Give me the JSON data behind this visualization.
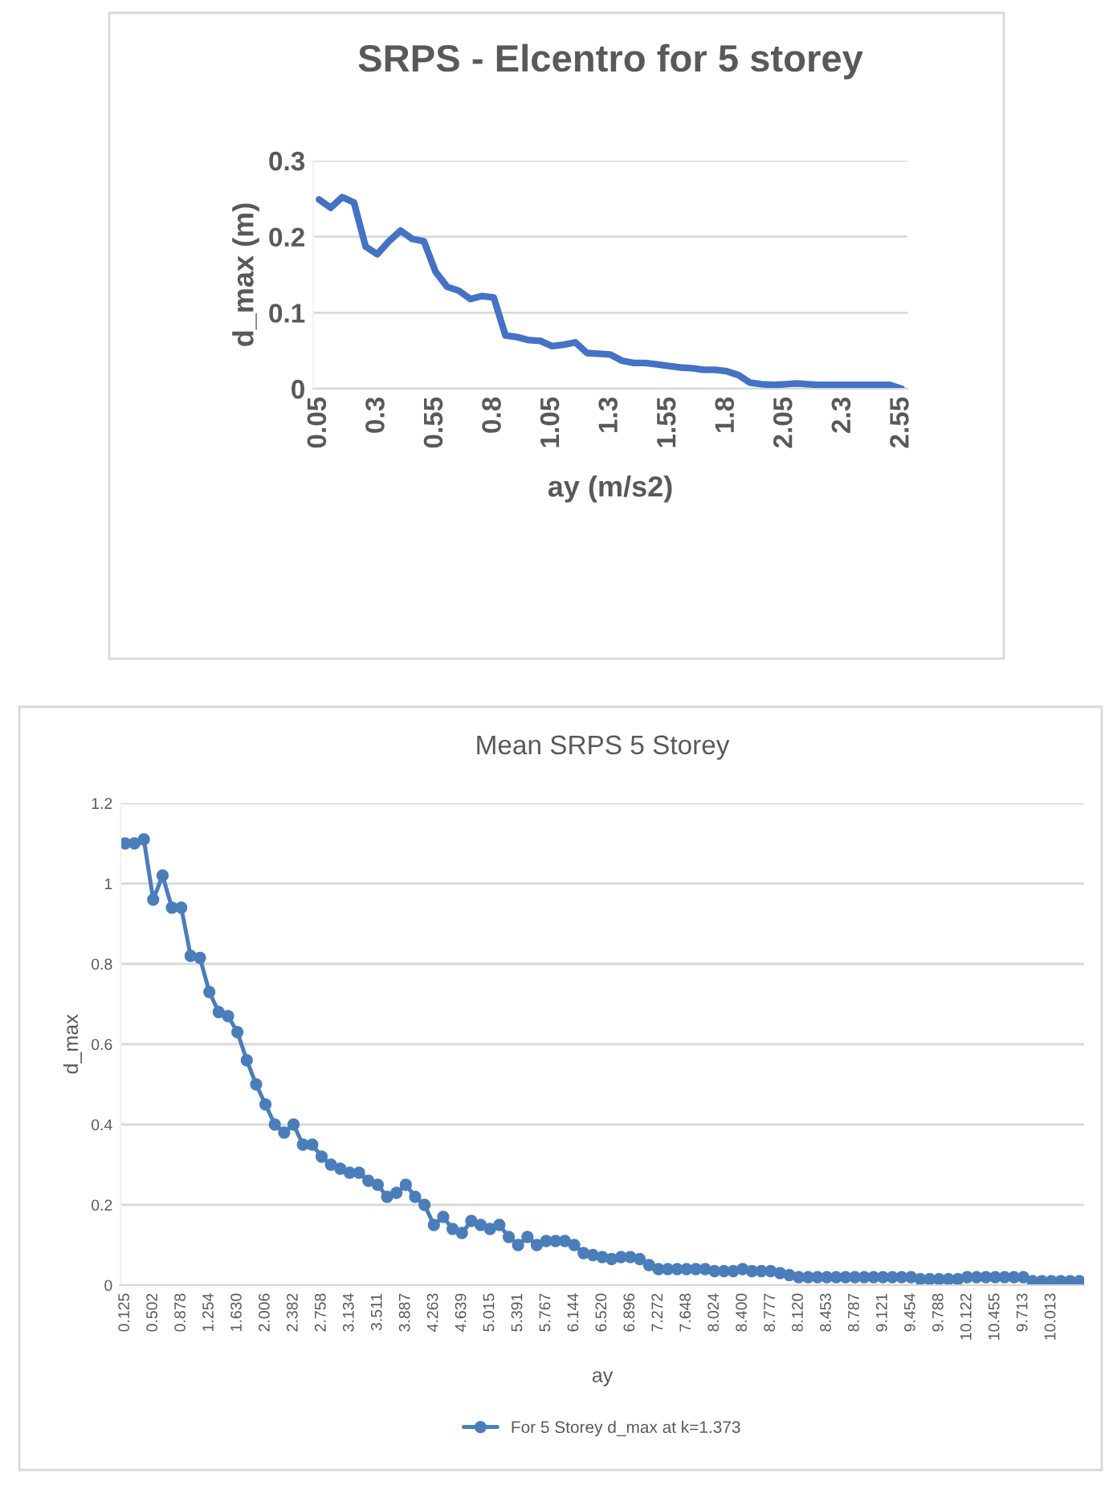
{
  "chart_data": [
    {
      "type": "line",
      "title": "SRPS - Elcentro for 5 storey",
      "xlabel": "ay (m/s2)",
      "ylabel": "d_max (m)",
      "categories": [
        "0.05",
        null,
        null,
        null,
        null,
        "0.3",
        null,
        null,
        null,
        null,
        "0.55",
        null,
        null,
        null,
        null,
        "0.8",
        null,
        null,
        null,
        null,
        "1.05",
        null,
        null,
        null,
        null,
        "1.3",
        null,
        null,
        null,
        null,
        "1.55",
        null,
        null,
        null,
        null,
        "1.8",
        null,
        null,
        null,
        null,
        "2.05",
        null,
        null,
        null,
        null,
        "2.3",
        null,
        null,
        null,
        null,
        "2.55"
      ],
      "series": [
        {
          "color": "#4472c4",
          "values": [
            0.249,
            0.238,
            0.252,
            0.245,
            0.187,
            0.177,
            0.194,
            0.208,
            0.197,
            0.194,
            0.154,
            0.134,
            0.129,
            0.118,
            0.122,
            0.12,
            0.07,
            0.068,
            0.064,
            0.063,
            0.056,
            0.058,
            0.061,
            0.047,
            0.046,
            0.045,
            0.037,
            0.034,
            0.034,
            0.032,
            0.03,
            0.028,
            0.027,
            0.025,
            0.025,
            0.023,
            0.018,
            0.008,
            0.006,
            0.005,
            0.006,
            0.007,
            0.006,
            0.005,
            0.005,
            0.005,
            0.005,
            0.005,
            0.005,
            0.005,
            0.0
          ]
        }
      ],
      "ylim": [
        0,
        0.3
      ],
      "yticks": [
        0,
        0.1,
        0.2,
        0.3
      ],
      "grid": "y"
    },
    {
      "type": "line",
      "title": "Mean SRPS 5 Storey",
      "xlabel": "ay",
      "ylabel": "d_max",
      "categories": [
        "0.125",
        null,
        null,
        "0.502",
        null,
        null,
        "0.878",
        null,
        null,
        "1.254",
        null,
        null,
        "1.630",
        null,
        null,
        "2.006",
        null,
        null,
        "2.382",
        null,
        null,
        "2.758",
        null,
        null,
        "3.134",
        null,
        null,
        "3.511",
        null,
        null,
        "3.887",
        null,
        null,
        "4.263",
        null,
        null,
        "4.639",
        null,
        null,
        "5.015",
        null,
        null,
        "5.391",
        null,
        null,
        "5.767",
        null,
        null,
        "6.144",
        null,
        null,
        "6.520",
        null,
        null,
        "6.896",
        null,
        null,
        "7.272",
        null,
        null,
        "7.648",
        null,
        null,
        "8.024",
        null,
        null,
        "8.400",
        null,
        null,
        "8.777",
        null,
        null,
        "8.120",
        null,
        null,
        "8.453",
        null,
        null,
        "8.787",
        null,
        null,
        "9.121",
        null,
        null,
        "9.454",
        null,
        null,
        "9.788",
        null,
        null,
        "10.122",
        null,
        null,
        "10.455",
        null,
        null,
        "9.713",
        null,
        null,
        "10.013",
        null,
        null,
        null
      ],
      "series": [
        {
          "name": "For 5 Storey d_max at k=1.373",
          "color": "#4a7ebb",
          "values": [
            1.1,
            1.1,
            1.11,
            0.96,
            1.02,
            0.94,
            0.94,
            0.82,
            0.815,
            0.73,
            0.68,
            0.67,
            0.63,
            0.56,
            0.5,
            0.45,
            0.4,
            0.38,
            0.4,
            0.35,
            0.35,
            0.32,
            0.3,
            0.29,
            0.28,
            0.28,
            0.26,
            0.25,
            0.22,
            0.23,
            0.25,
            0.22,
            0.2,
            0.15,
            0.17,
            0.14,
            0.13,
            0.16,
            0.15,
            0.14,
            0.15,
            0.12,
            0.1,
            0.12,
            0.1,
            0.11,
            0.11,
            0.11,
            0.1,
            0.08,
            0.075,
            0.07,
            0.065,
            0.07,
            0.07,
            0.065,
            0.05,
            0.04,
            0.04,
            0.04,
            0.04,
            0.04,
            0.04,
            0.035,
            0.035,
            0.035,
            0.04,
            0.035,
            0.035,
            0.035,
            0.03,
            0.025,
            0.02,
            0.02,
            0.02,
            0.02,
            0.02,
            0.02,
            0.02,
            0.02,
            0.02,
            0.02,
            0.02,
            0.02,
            0.02,
            0.015,
            0.015,
            0.015,
            0.015,
            0.015,
            0.02,
            0.02,
            0.02,
            0.02,
            0.02,
            0.02,
            0.02,
            0.01,
            0.01,
            0.01,
            0.01,
            0.01,
            0.01
          ]
        }
      ],
      "ylim": [
        0,
        1.2
      ],
      "yticks": [
        0,
        0.2,
        0.4,
        0.6,
        0.8,
        1,
        1.2
      ],
      "grid": "y",
      "marker": "circle",
      "legend": "bottom"
    }
  ]
}
